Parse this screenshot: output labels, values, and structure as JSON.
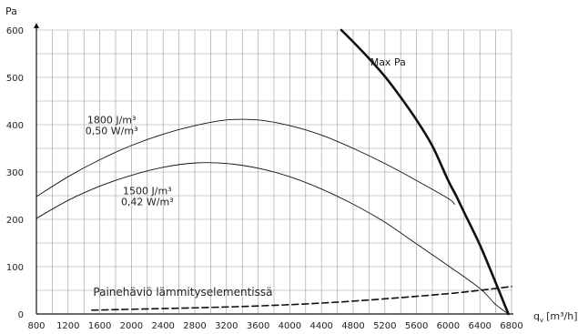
{
  "chart_data": {
    "type": "line",
    "ylabel": "Pa",
    "xlabel": "q",
    "xlabel_sub": "v",
    "xlabel_unit": "[m³/h]",
    "xlim": [
      800,
      6800
    ],
    "ylim": [
      0,
      600
    ],
    "x_ticks": [
      "800",
      "1200",
      "1600",
      "2000",
      "2400",
      "2800",
      "3200",
      "3600",
      "4000",
      "4400",
      "4800",
      "5200",
      "5600",
      "6000",
      "6400",
      "6800"
    ],
    "y_ticks": [
      "0",
      "100",
      "200",
      "300",
      "400",
      "500",
      "600"
    ],
    "grid": true,
    "series": [
      {
        "name": "1800 J/m³ 0,50 W/m³",
        "style": "thin",
        "points": [
          [
            800,
            248
          ],
          [
            1200,
            290
          ],
          [
            1600,
            326
          ],
          [
            2000,
            356
          ],
          [
            2400,
            380
          ],
          [
            2800,
            398
          ],
          [
            3200,
            410
          ],
          [
            3600,
            410
          ],
          [
            4000,
            398
          ],
          [
            4400,
            378
          ],
          [
            4800,
            350
          ],
          [
            5200,
            318
          ],
          [
            5600,
            282
          ],
          [
            6000,
            244
          ],
          [
            6080,
            232
          ]
        ]
      },
      {
        "name": "1500 J/m³ 0,42 W/m³",
        "style": "thin",
        "points": [
          [
            800,
            202
          ],
          [
            1200,
            240
          ],
          [
            1600,
            270
          ],
          [
            2000,
            293
          ],
          [
            2400,
            310
          ],
          [
            2800,
            319
          ],
          [
            3200,
            318
          ],
          [
            3600,
            308
          ],
          [
            4000,
            290
          ],
          [
            4400,
            264
          ],
          [
            4800,
            232
          ],
          [
            5200,
            194
          ],
          [
            5600,
            148
          ],
          [
            6000,
            102
          ],
          [
            6400,
            54
          ],
          [
            6600,
            20
          ],
          [
            6760,
            0
          ]
        ]
      },
      {
        "name": "Max Pa",
        "style": "thick",
        "points": [
          [
            4650,
            600
          ],
          [
            4800,
            575
          ],
          [
            5000,
            540
          ],
          [
            5200,
            502
          ],
          [
            5400,
            458
          ],
          [
            5600,
            410
          ],
          [
            5800,
            355
          ],
          [
            6000,
            282
          ],
          [
            6100,
            250
          ],
          [
            6200,
            215
          ],
          [
            6400,
            146
          ],
          [
            6600,
            66
          ],
          [
            6760,
            0
          ]
        ]
      },
      {
        "name": "Painehäviö lämmityselementissä",
        "style": "dashed",
        "points": [
          [
            1500,
            8
          ],
          [
            2000,
            10
          ],
          [
            2800,
            13
          ],
          [
            3600,
            17
          ],
          [
            4400,
            23
          ],
          [
            5200,
            32
          ],
          [
            6000,
            43
          ],
          [
            6400,
            50
          ],
          [
            6800,
            58
          ]
        ]
      }
    ],
    "annotations": [
      {
        "id": "a1",
        "lines": [
          "1800 J/m³",
          "0,50 W/m³"
        ],
        "x": 1750,
        "y": 403,
        "anchor": "middle",
        "size": "normal"
      },
      {
        "id": "a2",
        "lines": [
          "1500 J/m³",
          "0,42 W/m³"
        ],
        "x": 2200,
        "y": 253,
        "anchor": "middle",
        "size": "normal"
      },
      {
        "id": "a3",
        "lines": [
          "Max Pa"
        ],
        "x": 5240,
        "y": 525,
        "anchor": "middle",
        "size": "normal"
      },
      {
        "id": "a4",
        "lines": [
          "Painehäviö lämmityselementissä"
        ],
        "x": 2650,
        "y": 38,
        "anchor": "middle",
        "size": "large"
      }
    ]
  }
}
